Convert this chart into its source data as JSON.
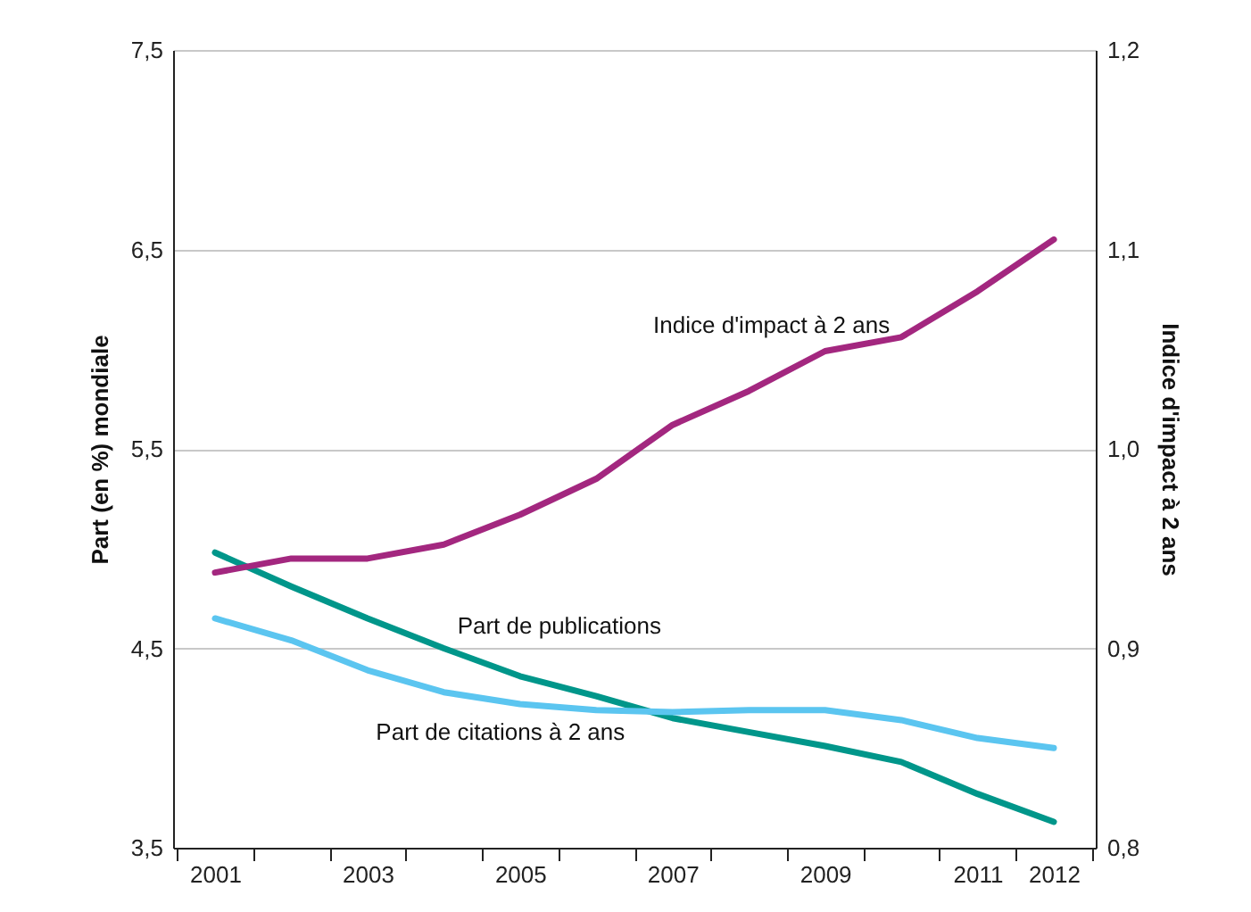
{
  "chart_data": {
    "type": "line",
    "ylabel": "Part (en %) mondiale",
    "y2label": "Indice d'impact à 2 ans",
    "categories": [
      "2001",
      null,
      "2003",
      null,
      "2005",
      null,
      "2007",
      null,
      "2009",
      null,
      "2011",
      "2012"
    ],
    "series": [
      {
        "name": "Part de publications",
        "color": "#00968a",
        "values": [
          4.98,
          4.81,
          4.65,
          4.5,
          4.36,
          4.26,
          4.15,
          4.08,
          4.01,
          3.93,
          3.77,
          3.63
        ]
      },
      {
        "name": "Part de citations à 2 ans",
        "color": "#5bc5f0",
        "values": [
          4.65,
          4.54,
          4.39,
          4.28,
          4.22,
          4.19,
          4.18,
          4.19,
          4.19,
          4.14,
          4.05,
          4.0
        ]
      },
      {
        "name": "Indice d'impact à 2 ans",
        "color": "#a3277f",
        "axis": "y2",
        "values": [
          0.938,
          0.945,
          0.945,
          0.952,
          0.967,
          0.985,
          1.012,
          1.029,
          1.049,
          1.056,
          1.079,
          1.105
        ]
      }
    ],
    "ylim": [
      3.5,
      7.5
    ],
    "yticks": [
      {
        "value": 3.5,
        "label": "3,5"
      },
      {
        "value": 4.5,
        "label": "4,5"
      },
      {
        "value": 5.5,
        "label": "5,5"
      },
      {
        "value": 6.5,
        "label": "6,5"
      },
      {
        "value": 7.5,
        "label": "7,5"
      }
    ],
    "y2lim": [
      0.8,
      1.2
    ],
    "y2ticks": [
      {
        "value": 0.8,
        "label": "0,8"
      },
      {
        "value": 0.9,
        "label": "0,9"
      },
      {
        "value": 1.0,
        "label": "1,0"
      },
      {
        "value": 1.1,
        "label": "1,1"
      },
      {
        "value": 1.2,
        "label": "1,2"
      }
    ],
    "grid": "y",
    "line_style": "solid"
  }
}
